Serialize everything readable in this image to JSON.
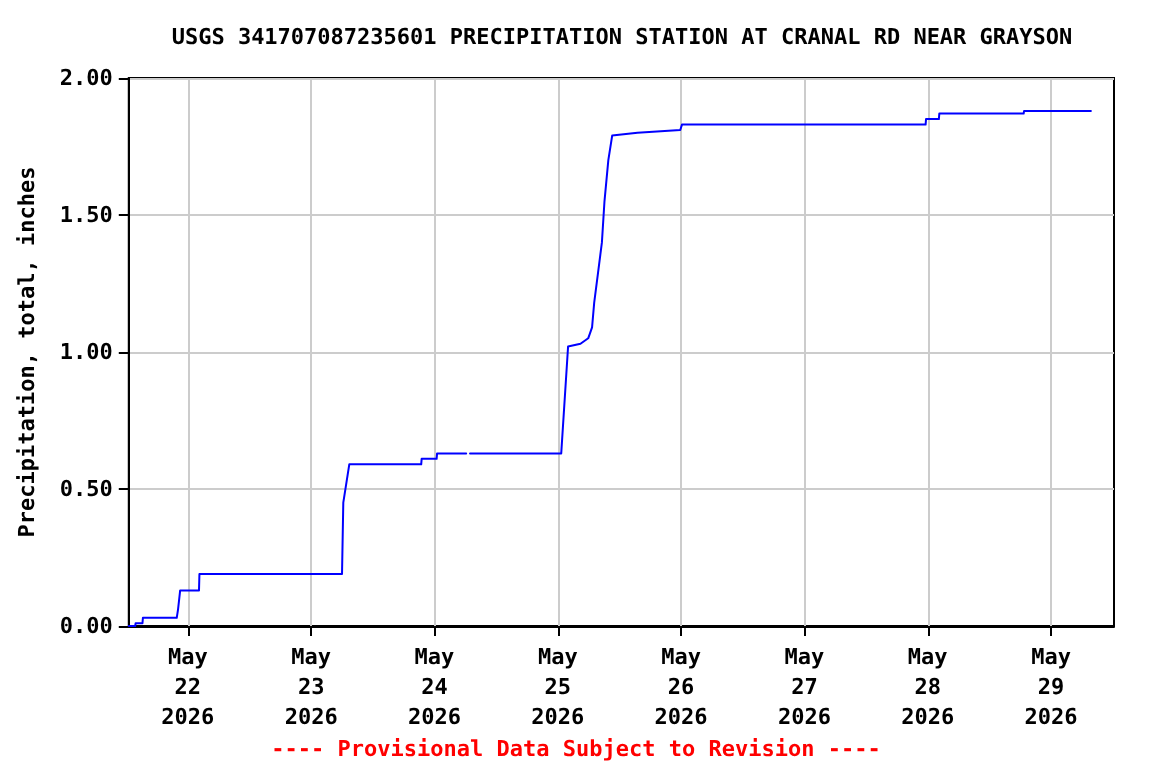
{
  "chart_data": {
    "type": "line",
    "title": "USGS 341707087235601 PRECIPITATION STATION AT CRANAL RD NEAR GRAYSON",
    "ylabel": "Precipitation, total, inches",
    "annotations": [
      "---- Provisional Data Subject to Revision ----"
    ],
    "series": [
      {
        "color": "#0000ff",
        "x": [
          "2026-05-21T12:30",
          "2026-05-21T13:45",
          "2026-05-21T13:50",
          "2026-05-21T15:10",
          "2026-05-21T15:15",
          "2026-05-21T21:50",
          "2026-05-21T22:05",
          "2026-05-21T22:30",
          "2026-05-22T02:10",
          "2026-05-22T02:15",
          "2026-05-23T06:00",
          "2026-05-23T06:15",
          "2026-05-23T07:25",
          "2026-05-23T21:25",
          "2026-05-23T21:30",
          "2026-05-24T00:25",
          "2026-05-24T00:30",
          "2026-05-24T06:10",
          "2026-05-24T06:30",
          "2026-05-24T06:55",
          "2026-05-25T00:40",
          "2026-05-25T02:00",
          "2026-05-25T04:25",
          "2026-05-25T05:55",
          "2026-05-25T06:40",
          "2026-05-25T07:05",
          "2026-05-25T07:50",
          "2026-05-25T08:35",
          "2026-05-25T09:05",
          "2026-05-25T09:50",
          "2026-05-25T10:35",
          "2026-05-25T15:30",
          "2026-05-25T23:50",
          "2026-05-26T00:10",
          "2026-05-27T23:35",
          "2026-05-27T23:40",
          "2026-05-28T02:10",
          "2026-05-28T02:15",
          "2026-05-28T18:40",
          "2026-05-28T18:45",
          "2026-05-29T07:45"
        ],
        "values": [
          0.0,
          0.0,
          0.01,
          0.01,
          0.03,
          0.03,
          0.06,
          0.13,
          0.13,
          0.19,
          0.19,
          0.45,
          0.59,
          0.59,
          0.61,
          0.61,
          0.63,
          0.63,
          null,
          0.63,
          0.63,
          1.02,
          1.03,
          1.05,
          1.09,
          1.18,
          1.29,
          1.4,
          1.55,
          1.7,
          1.79,
          1.8,
          1.81,
          1.83,
          1.83,
          1.85,
          1.85,
          1.87,
          1.87,
          1.88,
          1.88
        ]
      }
    ],
    "xlim": [
      "2026-05-21T12:30",
      "2026-05-29T12:15"
    ],
    "xticks": [
      {
        "value": "2026-05-22",
        "label": "May\n22\n2026"
      },
      {
        "value": "2026-05-23",
        "label": "May\n23\n2026"
      },
      {
        "value": "2026-05-24",
        "label": "May\n24\n2026"
      },
      {
        "value": "2026-05-25",
        "label": "May\n25\n2026"
      },
      {
        "value": "2026-05-26",
        "label": "May\n26\n2026"
      },
      {
        "value": "2026-05-27",
        "label": "May\n27\n2026"
      },
      {
        "value": "2026-05-28",
        "label": "May\n28\n2026"
      },
      {
        "value": "2026-05-29",
        "label": "May\n29\n2026"
      }
    ],
    "ylim": [
      0,
      2
    ],
    "yticks": [
      {
        "value": 0,
        "label": "0.00"
      },
      {
        "value": 0.5,
        "label": "0.50"
      },
      {
        "value": 1,
        "label": "1.00"
      },
      {
        "value": 1.5,
        "label": "1.50"
      },
      {
        "value": 2,
        "label": "2.00"
      }
    ],
    "grid": true,
    "marker": "none",
    "line_style": "solid"
  }
}
